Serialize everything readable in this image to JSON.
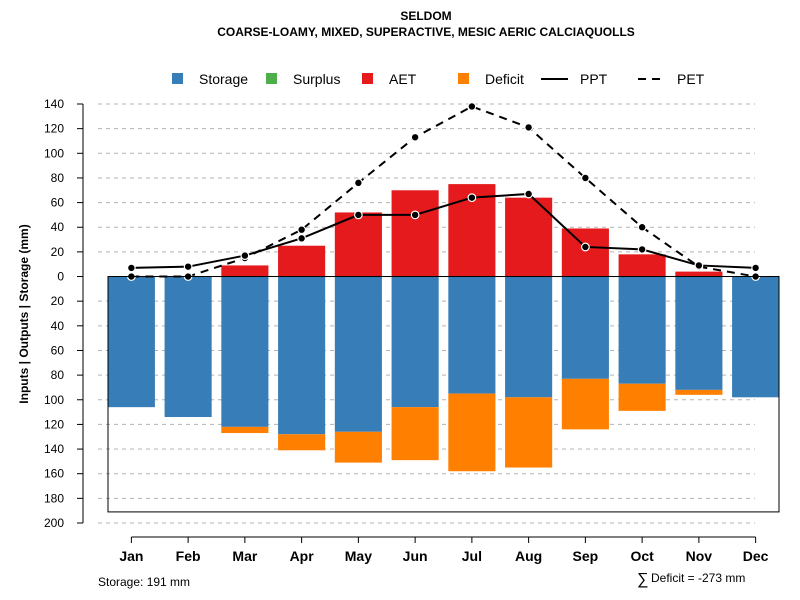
{
  "chart_data": {
    "type": "bar",
    "title": "SELDOM",
    "subtitle": "COARSE-LOAMY, MIXED, SUPERACTIVE, MESIC AERIC CALCIAQUOLLS",
    "ylabel": "Inputs | Outputs | Storage    (mm)",
    "ylim": [
      -200,
      140
    ],
    "yticks": [
      140,
      120,
      100,
      80,
      60,
      40,
      20,
      0,
      -20,
      -40,
      -60,
      -80,
      -100,
      -120,
      -140,
      -160,
      -180,
      -200
    ],
    "ytick_labels": [
      "140",
      "120",
      "100",
      "80",
      "60",
      "40",
      "20",
      "0",
      "20",
      "40",
      "60",
      "80",
      "100",
      "120",
      "140",
      "160",
      "180",
      "200"
    ],
    "categories": [
      "Jan",
      "Feb",
      "Mar",
      "Apr",
      "May",
      "Jun",
      "Jul",
      "Aug",
      "Sep",
      "Oct",
      "Nov",
      "Dec"
    ],
    "storage_capacity": 191,
    "legend": [
      {
        "key": "storage",
        "label": "Storage",
        "kind": "square",
        "color": "#377EB8"
      },
      {
        "key": "surplus",
        "label": "Surplus",
        "kind": "square",
        "color": "#4DAF4A"
      },
      {
        "key": "aet",
        "label": "AET",
        "kind": "square",
        "color": "#E41A1C"
      },
      {
        "key": "deficit",
        "label": "Deficit",
        "kind": "square",
        "color": "#FF7F00"
      },
      {
        "key": "ppt",
        "label": "PPT",
        "kind": "solid-line",
        "color": "#000000"
      },
      {
        "key": "pet",
        "label": "PET",
        "kind": "dashed-line",
        "color": "#000000"
      }
    ],
    "series": [
      {
        "name": "Storage",
        "color": "#377EB8",
        "values": [
          106,
          114,
          122,
          128,
          126,
          106,
          95,
          98,
          83,
          87,
          92,
          98
        ]
      },
      {
        "name": "Surplus",
        "color": "#4DAF4A",
        "values": [
          0,
          0,
          0,
          0,
          0,
          0,
          0,
          0,
          0,
          0,
          0,
          0
        ]
      },
      {
        "name": "AET",
        "color": "#E41A1C",
        "values": [
          0,
          0,
          9,
          25,
          52,
          70,
          75,
          64,
          39,
          18,
          4,
          0
        ]
      },
      {
        "name": "Deficit",
        "color": "#FF7F00",
        "values": [
          0,
          0,
          5,
          13,
          25,
          43,
          63,
          57,
          41,
          22,
          4,
          0
        ]
      },
      {
        "name": "PPT",
        "color": "#000000",
        "values": [
          7,
          8,
          17,
          31,
          50,
          50,
          64,
          67,
          24,
          22,
          9,
          7
        ]
      },
      {
        "name": "PET",
        "color": "#000000",
        "values": [
          0,
          0,
          15,
          38,
          76,
          113,
          138,
          121,
          80,
          40,
          8,
          0
        ]
      }
    ]
  },
  "footer": {
    "storage_text": "Storage: 191 mm",
    "sum_symbol": "∑",
    "deficit_text": "Deficit = -273 mm"
  }
}
